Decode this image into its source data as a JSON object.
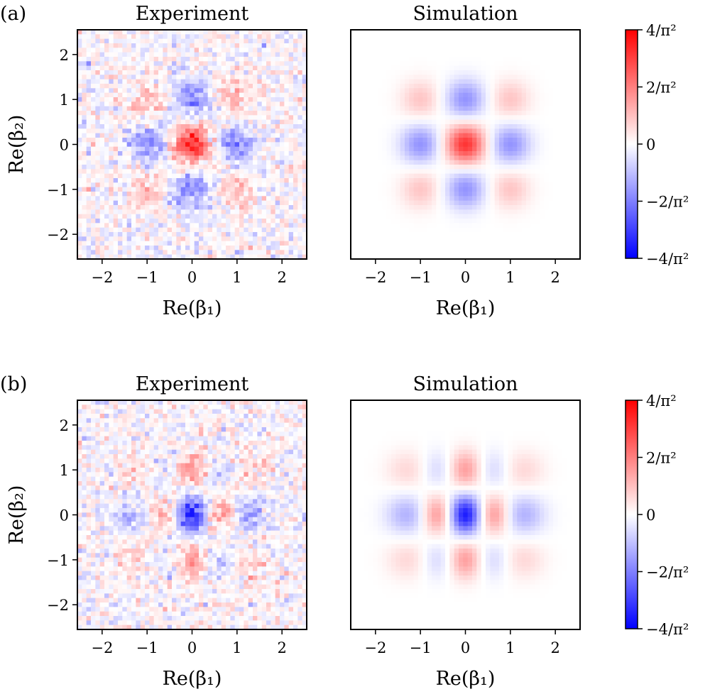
{
  "figure": {
    "panels": [
      {
        "label": "(a)",
        "experiment_title": "Experiment",
        "simulation_title": "Simulation"
      },
      {
        "label": "(b)",
        "experiment_title": "Experiment",
        "simulation_title": "Simulation"
      }
    ]
  },
  "chart_data": [
    {
      "type": "heatmap",
      "panel": "(a)",
      "title": "Experiment",
      "xlabel": "Re(β₁)",
      "ylabel": "Re(β₂)",
      "xlim": [
        -2.55,
        2.55
      ],
      "ylim": [
        -2.55,
        2.55
      ],
      "xticks": [
        -2,
        -1,
        0,
        1,
        2
      ],
      "xtick_labels": [
        "−2",
        "−1",
        "0",
        "1",
        "2"
      ],
      "yticks": [
        2,
        1,
        0,
        -1,
        -2
      ],
      "ytick_labels": [
        "2",
        "1",
        "0",
        "−1",
        "−2"
      ],
      "value_unit": "1/π²",
      "noisy": true,
      "lobe_x": [
        -1,
        0,
        1
      ],
      "lobe_y": [
        1,
        0,
        -1
      ],
      "lobe_peaks": [
        [
          0.9,
          -1.7,
          0.9
        ],
        [
          -1.8,
          3.2,
          -1.8
        ],
        [
          0.9,
          -1.7,
          0.9
        ]
      ]
    },
    {
      "type": "heatmap",
      "panel": "(a)",
      "title": "Simulation",
      "xlabel": "Re(β₁)",
      "ylabel": "",
      "xlim": [
        -2.55,
        2.55
      ],
      "ylim": [
        -2.55,
        2.55
      ],
      "xticks": [
        -2,
        -1,
        0,
        1,
        2
      ],
      "xtick_labels": [
        "−2",
        "−1",
        "0",
        "1",
        "2"
      ],
      "yticks": [],
      "ytick_labels": [],
      "value_unit": "1/π²",
      "noisy": false,
      "lobe_x": [
        -1,
        0,
        1
      ],
      "lobe_y": [
        1,
        0,
        -1
      ],
      "lobe_peaks": [
        [
          0.9,
          -1.7,
          0.9
        ],
        [
          -1.7,
          3.2,
          -1.7
        ],
        [
          0.9,
          -1.7,
          0.9
        ]
      ]
    },
    {
      "type": "heatmap",
      "panel": "(b)",
      "title": "Experiment",
      "xlabel": "Re(β₁)",
      "ylabel": "Re(β₂)",
      "xlim": [
        -2.55,
        2.55
      ],
      "ylim": [
        -2.55,
        2.55
      ],
      "xticks": [
        -2,
        -1,
        0,
        1,
        2
      ],
      "xtick_labels": [
        "−2",
        "−1",
        "0",
        "1",
        "2"
      ],
      "yticks": [
        2,
        1,
        0,
        -1,
        -2
      ],
      "ytick_labels": [
        "2",
        "1",
        "0",
        "−1",
        "−2"
      ],
      "value_unit": "1/π²",
      "noisy": true,
      "lobe_x": [
        -1.3,
        -0.65,
        0,
        0.65,
        1.3
      ],
      "lobe_y": [
        1,
        0,
        -1
      ],
      "lobe_peaks": [
        [
          0.6,
          -0.6,
          1.5,
          -0.6,
          0.6
        ],
        [
          -1.2,
          1.5,
          -3.4,
          1.5,
          -1.2
        ],
        [
          0.6,
          -0.6,
          1.5,
          -0.6,
          0.6
        ]
      ]
    },
    {
      "type": "heatmap",
      "panel": "(b)",
      "title": "Simulation",
      "xlabel": "Re(β₁)",
      "ylabel": "",
      "xlim": [
        -2.55,
        2.55
      ],
      "ylim": [
        -2.55,
        2.55
      ],
      "xticks": [
        -2,
        -1,
        0,
        1,
        2
      ],
      "xtick_labels": [
        "−2",
        "−1",
        "0",
        "1",
        "2"
      ],
      "yticks": [],
      "ytick_labels": [],
      "value_unit": "1/π²",
      "noisy": false,
      "lobe_x": [
        -1.3,
        -0.65,
        0,
        0.65,
        1.3
      ],
      "lobe_y": [
        1,
        0,
        -1
      ],
      "lobe_peaks": [
        [
          0.6,
          -0.6,
          1.5,
          -0.6,
          0.6
        ],
        [
          -1.2,
          1.6,
          -3.6,
          1.6,
          -1.2
        ],
        [
          0.6,
          -0.6,
          1.5,
          -0.6,
          0.6
        ]
      ]
    }
  ],
  "colorbar": {
    "colormap": "bwr",
    "range": [
      -4,
      4
    ],
    "ticks": [
      4,
      2,
      0,
      -2,
      -4
    ],
    "tick_labels": [
      "4/π²",
      "2/π²",
      "0",
      "−2/π²",
      "−4/π²"
    ],
    "colors": {
      "max": "#ff0000",
      "mid": "#ffffff",
      "min": "#0000ff"
    }
  }
}
